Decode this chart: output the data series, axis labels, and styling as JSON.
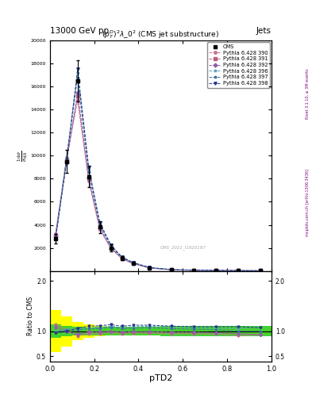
{
  "title": "13000 GeV pp",
  "title_right": "Jets",
  "plot_title": "$(p_T^D)^2\\lambda\\_0^2$ (CMS jet substructure)",
  "xlabel": "pTD2",
  "ylabel_ratio": "Ratio to CMS",
  "watermark": "CMS_2021_I1920187",
  "rivet_text": "Rivet 3.1.10, ≥ 3M events",
  "arxiv_text": "mcplots.cern.ch [arXiv:1306.3436]",
  "cms_label": "CMS",
  "x_bins": [
    0.0,
    0.05,
    0.1,
    0.15,
    0.2,
    0.25,
    0.3,
    0.35,
    0.4,
    0.5,
    0.6,
    0.7,
    0.8,
    0.9,
    1.0
  ],
  "x_centers": [
    0.025,
    0.075,
    0.125,
    0.175,
    0.225,
    0.275,
    0.325,
    0.375,
    0.45,
    0.55,
    0.65,
    0.75,
    0.85,
    0.95
  ],
  "cms_data": [
    2800,
    9500,
    16500,
    8200,
    3800,
    2000,
    1100,
    650,
    260,
    100,
    55,
    35,
    22,
    15
  ],
  "cms_err": [
    400,
    1000,
    1800,
    900,
    500,
    280,
    150,
    90,
    40,
    18,
    12,
    8,
    6,
    5
  ],
  "py390": [
    3200,
    9800,
    14800,
    7800,
    3600,
    1950,
    1050,
    630,
    250,
    95,
    52,
    33,
    20,
    14
  ],
  "py391": [
    3100,
    9600,
    15200,
    8000,
    3700,
    1980,
    1070,
    640,
    255,
    97,
    53,
    34,
    21,
    14
  ],
  "py392": [
    3000,
    9400,
    15500,
    8100,
    3750,
    2000,
    1080,
    645,
    258,
    98,
    54,
    34,
    21,
    14
  ],
  "py396": [
    2800,
    9900,
    17200,
    8800,
    4100,
    2200,
    1180,
    710,
    285,
    108,
    59,
    37,
    23,
    16
  ],
  "py397": [
    2750,
    9700,
    16800,
    8600,
    4000,
    2150,
    1150,
    690,
    278,
    105,
    57,
    36,
    22,
    15
  ],
  "py398": [
    2700,
    9500,
    17500,
    9000,
    4200,
    2250,
    1210,
    730,
    292,
    110,
    60,
    38,
    24,
    16
  ],
  "ratio_err_stat": [
    0.13,
    0.1,
    0.09,
    0.08,
    0.09,
    0.09,
    0.09,
    0.09,
    0.09,
    0.1,
    0.1,
    0.1,
    0.1,
    0.1
  ],
  "ratio_err_syst": [
    0.42,
    0.3,
    0.18,
    0.13,
    0.1,
    0.09,
    0.09,
    0.09,
    0.09,
    0.09,
    0.09,
    0.09,
    0.09,
    0.09
  ],
  "ratio_py390": [
    1.14,
    1.03,
    0.9,
    0.95,
    0.95,
    0.98,
    0.95,
    0.97,
    0.96,
    0.95,
    0.95,
    0.94,
    0.91,
    0.93
  ],
  "ratio_py391": [
    1.11,
    1.01,
    0.92,
    0.98,
    0.97,
    0.99,
    0.97,
    0.98,
    0.98,
    0.97,
    0.96,
    0.97,
    0.95,
    0.93
  ],
  "ratio_py392": [
    1.07,
    0.99,
    0.94,
    0.99,
    0.99,
    1.0,
    0.98,
    0.99,
    0.99,
    0.98,
    0.98,
    0.97,
    0.95,
    0.93
  ],
  "ratio_py396": [
    1.0,
    1.04,
    1.04,
    1.07,
    1.08,
    1.1,
    1.07,
    1.09,
    1.1,
    1.08,
    1.07,
    1.06,
    1.05,
    1.07
  ],
  "ratio_py397": [
    0.98,
    1.02,
    1.02,
    1.05,
    1.05,
    1.08,
    1.05,
    1.06,
    1.07,
    1.05,
    1.04,
    1.03,
    1.0,
    1.0
  ],
  "ratio_py398": [
    0.96,
    1.0,
    1.06,
    1.1,
    1.11,
    1.13,
    1.1,
    1.12,
    1.12,
    1.1,
    1.09,
    1.09,
    1.09,
    1.07
  ],
  "colors": {
    "py390": "#c87090",
    "py391": "#b86080",
    "py392": "#9060a8",
    "py396": "#60a0c0",
    "py397": "#4070a8",
    "py398": "#203888"
  },
  "markers": {
    "py390": "o",
    "py391": "s",
    "py392": "D",
    "py396": "*",
    "py397": "*",
    "py398": "v"
  },
  "yticks_main": [
    0,
    2000,
    4000,
    6000,
    8000,
    10000,
    12000,
    14000,
    16000,
    18000,
    20000
  ],
  "ylim_main": [
    0,
    20000
  ],
  "ylim_ratio": [
    0.4,
    2.2
  ],
  "yticks_ratio": [
    0.5,
    1.0,
    2.0
  ],
  "xlim": [
    0.0,
    1.0
  ]
}
